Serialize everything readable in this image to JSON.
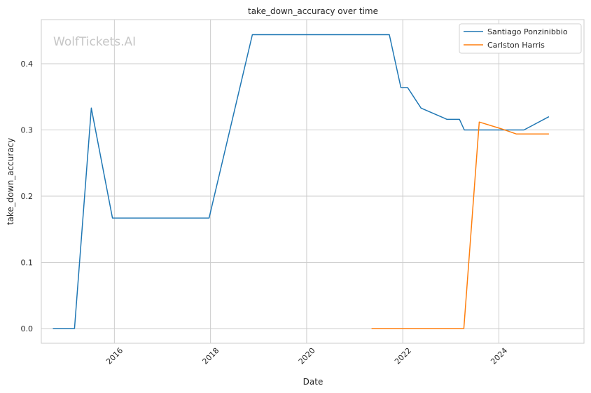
{
  "chart_data": {
    "type": "line",
    "title": "take_down_accuracy over time",
    "xlabel": "Date",
    "ylabel": "take_down_accuracy",
    "watermark": "WolfTickets.AI",
    "x_ticks": [
      "2016",
      "2018",
      "2020",
      "2022",
      "2024"
    ],
    "y_ticks": [
      "0.0",
      "0.1",
      "0.2",
      "0.3",
      "0.4"
    ],
    "xlim": [
      2014.48,
      2025.77
    ],
    "ylim": [
      -0.0222,
      0.4667
    ],
    "grid": true,
    "legend_position": "top-right",
    "series": [
      {
        "name": "Santiago Ponzinibbio",
        "color": "#1f77b4",
        "points": [
          {
            "x": 2014.72,
            "y": 0.0
          },
          {
            "x": 2015.17,
            "y": 0.0
          },
          {
            "x": 2015.52,
            "y": 0.333
          },
          {
            "x": 2015.96,
            "y": 0.167
          },
          {
            "x": 2017.97,
            "y": 0.167
          },
          {
            "x": 2018.87,
            "y": 0.444
          },
          {
            "x": 2021.72,
            "y": 0.444
          },
          {
            "x": 2021.96,
            "y": 0.364
          },
          {
            "x": 2022.1,
            "y": 0.364
          },
          {
            "x": 2022.38,
            "y": 0.333
          },
          {
            "x": 2022.92,
            "y": 0.316
          },
          {
            "x": 2023.18,
            "y": 0.316
          },
          {
            "x": 2023.28,
            "y": 0.3
          },
          {
            "x": 2024.52,
            "y": 0.3
          },
          {
            "x": 2025.04,
            "y": 0.32
          }
        ]
      },
      {
        "name": "Carlston Harris",
        "color": "#ff7f0e",
        "points": [
          {
            "x": 2021.35,
            "y": 0.0
          },
          {
            "x": 2023.27,
            "y": 0.0
          },
          {
            "x": 2023.59,
            "y": 0.312
          },
          {
            "x": 2024.04,
            "y": 0.302
          },
          {
            "x": 2024.36,
            "y": 0.294
          },
          {
            "x": 2025.04,
            "y": 0.294
          }
        ]
      }
    ]
  }
}
